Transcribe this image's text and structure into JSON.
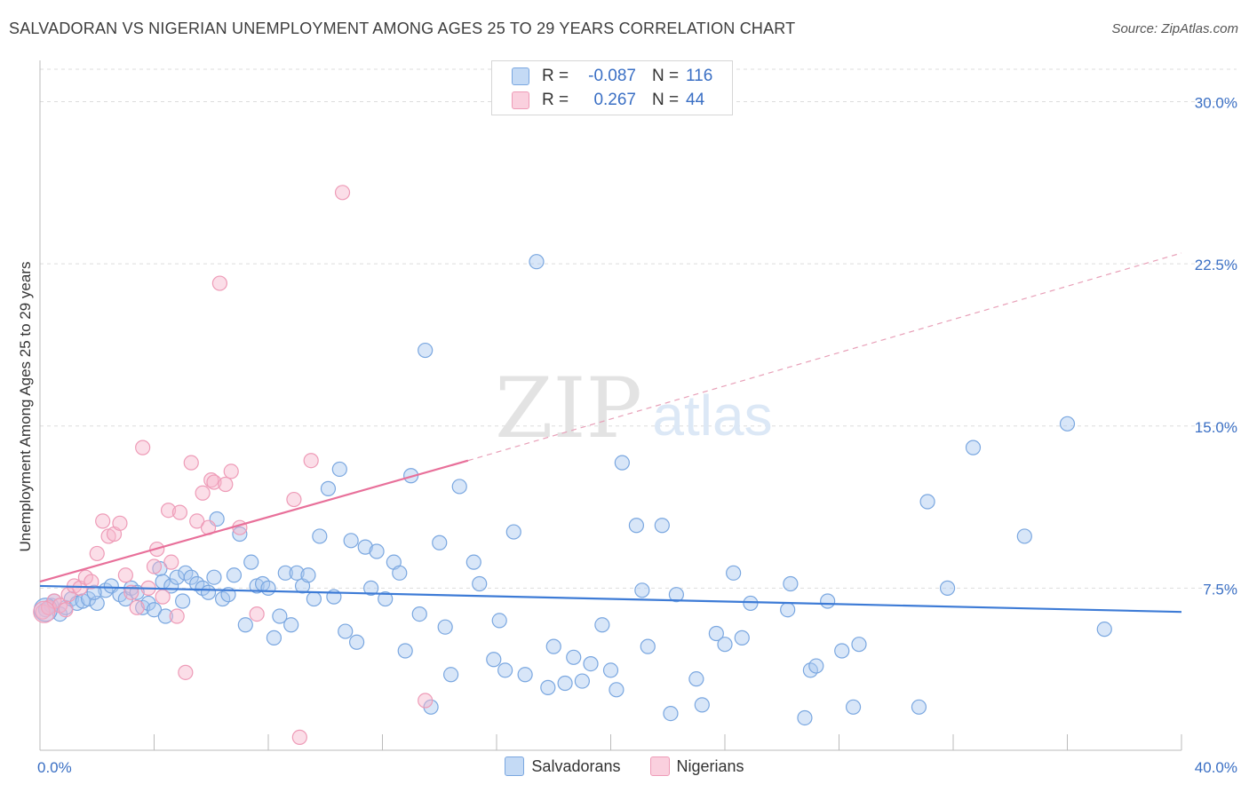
{
  "title": "SALVADORAN VS NIGERIAN UNEMPLOYMENT AMONG AGES 25 TO 29 YEARS CORRELATION CHART",
  "source": "Source: ZipAtlas.com",
  "watermark": {
    "zip": "ZIP",
    "atlas": "atlas"
  },
  "stats": [
    {
      "r_label": "R =",
      "r_value": "-0.087",
      "n_label": "N =",
      "n_value": "116",
      "color": "#a9c8f0"
    },
    {
      "r_label": "R =",
      "r_value": "0.267",
      "n_label": "N =",
      "n_value": "44",
      "color": "#f6b6cb"
    }
  ],
  "legend": [
    {
      "label": "Salvadorans",
      "color": "#a9c8f0"
    },
    {
      "label": "Nigerians",
      "color": "#f6b6cb"
    }
  ],
  "chart_data": {
    "type": "scatter",
    "title": "SALVADORAN VS NIGERIAN UNEMPLOYMENT AMONG AGES 25 TO 29 YEARS CORRELATION CHART",
    "xlabel": "",
    "ylabel": "Unemployment Among Ages 25 to 29 years",
    "xlim": [
      0,
      40
    ],
    "ylim": [
      0,
      31.5
    ],
    "x_tick_labels": {
      "min": "0.0%",
      "max": "40.0%"
    },
    "y_ticks": [
      {
        "value": 7.5,
        "label": "7.5%"
      },
      {
        "value": 15,
        "label": "15.0%"
      },
      {
        "value": 22.5,
        "label": "22.5%"
      },
      {
        "value": 30,
        "label": "30.0%"
      }
    ],
    "grid": true,
    "legend_position": "bottom",
    "series": [
      {
        "name": "Salvadorans",
        "color": "#7aa7e0",
        "fill": "#a9c8f0",
        "trend": {
          "x": [
            0,
            40
          ],
          "y": [
            7.6,
            6.4
          ],
          "style": "solid",
          "color": "#3d7bd6"
        },
        "points": [
          [
            0.2,
            6.5
          ],
          [
            0.4,
            6.7
          ],
          [
            0.5,
            6.9
          ],
          [
            0.7,
            6.3
          ],
          [
            0.9,
            6.6
          ],
          [
            1.1,
            7.0
          ],
          [
            1.3,
            6.8
          ],
          [
            1.5,
            6.9
          ],
          [
            1.7,
            7.0
          ],
          [
            2.0,
            6.8
          ],
          [
            2.3,
            7.4
          ],
          [
            2.5,
            7.6
          ],
          [
            2.8,
            7.2
          ],
          [
            3.0,
            7.0
          ],
          [
            3.2,
            7.5
          ],
          [
            3.4,
            7.3
          ],
          [
            3.6,
            6.6
          ],
          [
            3.8,
            6.8
          ],
          [
            4.0,
            6.5
          ],
          [
            4.2,
            8.4
          ],
          [
            4.3,
            7.8
          ],
          [
            4.4,
            6.2
          ],
          [
            4.6,
            7.6
          ],
          [
            4.8,
            8.0
          ],
          [
            5.0,
            6.9
          ],
          [
            5.1,
            8.2
          ],
          [
            5.3,
            8.0
          ],
          [
            5.5,
            7.7
          ],
          [
            5.7,
            7.5
          ],
          [
            5.9,
            7.3
          ],
          [
            6.1,
            8.0
          ],
          [
            6.2,
            10.7
          ],
          [
            6.4,
            7.0
          ],
          [
            6.6,
            7.2
          ],
          [
            6.8,
            8.1
          ],
          [
            7.0,
            10.0
          ],
          [
            7.2,
            5.8
          ],
          [
            7.4,
            8.7
          ],
          [
            7.6,
            7.6
          ],
          [
            7.8,
            7.7
          ],
          [
            8.0,
            7.5
          ],
          [
            8.2,
            5.2
          ],
          [
            8.4,
            6.2
          ],
          [
            8.6,
            8.2
          ],
          [
            8.8,
            5.8
          ],
          [
            9.0,
            8.2
          ],
          [
            9.2,
            7.6
          ],
          [
            9.4,
            8.1
          ],
          [
            9.6,
            7.0
          ],
          [
            9.8,
            9.9
          ],
          [
            10.1,
            12.1
          ],
          [
            10.3,
            7.1
          ],
          [
            10.5,
            13.0
          ],
          [
            10.7,
            5.5
          ],
          [
            10.9,
            9.7
          ],
          [
            11.1,
            5.0
          ],
          [
            11.4,
            9.4
          ],
          [
            11.6,
            7.5
          ],
          [
            11.8,
            9.2
          ],
          [
            12.1,
            7.0
          ],
          [
            12.4,
            8.7
          ],
          [
            12.6,
            8.2
          ],
          [
            12.8,
            4.6
          ],
          [
            13.0,
            12.7
          ],
          [
            13.3,
            6.3
          ],
          [
            13.5,
            18.5
          ],
          [
            13.7,
            2.0
          ],
          [
            14.0,
            9.6
          ],
          [
            14.2,
            5.7
          ],
          [
            14.4,
            3.5
          ],
          [
            14.7,
            12.2
          ],
          [
            15.2,
            8.7
          ],
          [
            15.4,
            7.7
          ],
          [
            15.9,
            4.2
          ],
          [
            16.1,
            6.0
          ],
          [
            16.3,
            3.7
          ],
          [
            16.6,
            10.1
          ],
          [
            17.0,
            3.5
          ],
          [
            17.4,
            22.6
          ],
          [
            17.8,
            2.9
          ],
          [
            18.0,
            4.8
          ],
          [
            18.4,
            3.1
          ],
          [
            18.7,
            4.3
          ],
          [
            19.0,
            3.2
          ],
          [
            19.3,
            4.0
          ],
          [
            19.7,
            5.8
          ],
          [
            20.0,
            3.7
          ],
          [
            20.2,
            2.8
          ],
          [
            20.4,
            13.3
          ],
          [
            20.9,
            10.4
          ],
          [
            21.1,
            7.4
          ],
          [
            21.3,
            4.8
          ],
          [
            21.8,
            10.4
          ],
          [
            22.1,
            1.7
          ],
          [
            22.3,
            7.2
          ],
          [
            23.0,
            3.3
          ],
          [
            23.2,
            2.1
          ],
          [
            23.7,
            5.4
          ],
          [
            24.0,
            4.9
          ],
          [
            24.3,
            8.2
          ],
          [
            24.6,
            5.2
          ],
          [
            24.9,
            6.8
          ],
          [
            26.2,
            6.5
          ],
          [
            26.3,
            7.7
          ],
          [
            26.8,
            1.5
          ],
          [
            27.0,
            3.7
          ],
          [
            27.2,
            3.9
          ],
          [
            27.6,
            6.9
          ],
          [
            28.1,
            4.6
          ],
          [
            28.5,
            2.0
          ],
          [
            28.7,
            4.9
          ],
          [
            30.8,
            2.0
          ],
          [
            31.1,
            11.5
          ],
          [
            31.8,
            7.5
          ],
          [
            32.7,
            14.0
          ],
          [
            34.5,
            9.9
          ],
          [
            36.0,
            15.1
          ],
          [
            37.3,
            5.6
          ],
          [
            0.3,
            6.6
          ],
          [
            1.9,
            7.3
          ]
        ]
      },
      {
        "name": "Nigerians",
        "color": "#ee9bb7",
        "fill": "#f6b6cb",
        "trend": {
          "x": [
            0,
            15
          ],
          "y": [
            7.8,
            13.4
          ],
          "style": "solid",
          "color": "#e8709a"
        },
        "trend_extension": {
          "x": [
            15,
            40
          ],
          "y": [
            13.4,
            23.0
          ],
          "style": "dashed",
          "color": "#e8a0b8"
        },
        "points": [
          [
            0.1,
            6.4
          ],
          [
            0.3,
            6.6
          ],
          [
            0.5,
            6.9
          ],
          [
            0.7,
            6.7
          ],
          [
            0.9,
            6.5
          ],
          [
            1.0,
            7.2
          ],
          [
            1.2,
            7.6
          ],
          [
            1.4,
            7.5
          ],
          [
            1.6,
            8.0
          ],
          [
            1.8,
            7.8
          ],
          [
            2.0,
            9.1
          ],
          [
            2.2,
            10.6
          ],
          [
            2.4,
            9.9
          ],
          [
            2.6,
            10.0
          ],
          [
            2.8,
            10.5
          ],
          [
            3.0,
            8.1
          ],
          [
            3.2,
            7.3
          ],
          [
            3.4,
            6.6
          ],
          [
            3.6,
            14.0
          ],
          [
            3.8,
            7.5
          ],
          [
            4.0,
            8.5
          ],
          [
            4.1,
            9.3
          ],
          [
            4.3,
            7.1
          ],
          [
            4.5,
            11.1
          ],
          [
            4.6,
            8.7
          ],
          [
            4.8,
            6.2
          ],
          [
            4.9,
            11.0
          ],
          [
            5.1,
            3.6
          ],
          [
            5.3,
            13.3
          ],
          [
            5.5,
            10.6
          ],
          [
            5.7,
            11.9
          ],
          [
            5.9,
            10.3
          ],
          [
            6.0,
            12.5
          ],
          [
            6.1,
            12.4
          ],
          [
            6.3,
            21.6
          ],
          [
            6.5,
            12.3
          ],
          [
            6.7,
            12.9
          ],
          [
            7.0,
            10.3
          ],
          [
            7.6,
            6.3
          ],
          [
            8.9,
            11.6
          ],
          [
            9.1,
            0.6
          ],
          [
            9.5,
            13.4
          ],
          [
            10.6,
            25.8
          ],
          [
            13.5,
            2.3
          ]
        ]
      }
    ]
  }
}
